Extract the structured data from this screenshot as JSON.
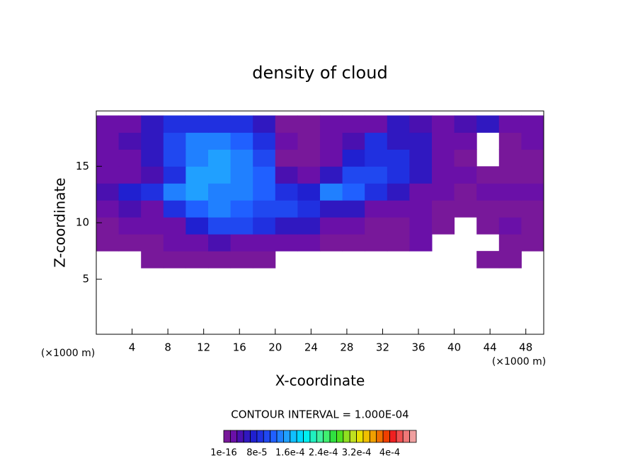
{
  "chart_data": {
    "type": "contourf",
    "title": "density of cloud",
    "x_label": "X-coordinate",
    "y_label": "Z-coordinate",
    "x_unit": "(×1000 m)",
    "y_unit": "(×1000 m)",
    "note": "CONTOUR INTERVAL = 1.000E-04",
    "xlim": [
      0,
      50
    ],
    "ylim": [
      0,
      19.9
    ],
    "xticks": [
      4,
      8,
      12,
      16,
      20,
      24,
      28,
      32,
      36,
      40,
      44,
      48
    ],
    "yticks": [
      5,
      10,
      15
    ],
    "x_edges": [
      0,
      2.5,
      5,
      7.5,
      10,
      12.5,
      15,
      17.5,
      20,
      22.5,
      25,
      27.5,
      30,
      32.5,
      35,
      37.5,
      40,
      42.5,
      45,
      47.5,
      50
    ],
    "z_edges": [
      6,
      7.5,
      9,
      10.5,
      12,
      13.5,
      15,
      16.5,
      18,
      19.5
    ],
    "values": [
      [
        null,
        null,
        1e-05,
        1e-05,
        1e-05,
        1e-05,
        1e-05,
        1e-05,
        null,
        null,
        null,
        null,
        null,
        null,
        null,
        null,
        null,
        1e-05,
        1e-05,
        null
      ],
      [
        1e-05,
        1e-05,
        1e-05,
        2e-05,
        3e-05,
        4e-05,
        3e-05,
        2e-05,
        2e-05,
        3e-05,
        1e-05,
        1e-05,
        1e-05,
        1e-05,
        2e-05,
        null,
        null,
        null,
        1e-05,
        1e-05
      ],
      [
        1e-05,
        2e-05,
        2e-05,
        3e-05,
        7e-05,
        0.0001,
        0.0001,
        8e-05,
        6e-05,
        5e-05,
        3e-05,
        2e-05,
        1e-05,
        1e-05,
        2e-05,
        1e-05,
        null,
        1e-05,
        2e-05,
        1e-05
      ],
      [
        3e-05,
        4e-05,
        3e-05,
        8e-05,
        0.00012,
        0.00013,
        0.00012,
        0.00011,
        0.0001,
        9e-05,
        6e-05,
        5e-05,
        3e-05,
        2e-05,
        2e-05,
        1e-05,
        1e-05,
        1e-05,
        1e-05,
        1e-05
      ],
      [
        4e-05,
        7e-05,
        8e-05,
        0.00013,
        0.00015,
        0.00014,
        0.00013,
        0.00012,
        9e-05,
        7e-05,
        0.00013,
        0.00012,
        9e-05,
        5e-05,
        3e-05,
        2e-05,
        1e-05,
        2e-05,
        3e-05,
        2e-05
      ],
      [
        2e-05,
        2e-05,
        4e-05,
        9e-05,
        0.00015,
        0.00015,
        0.00013,
        0.00012,
        4e-05,
        2e-05,
        6e-05,
        0.0001,
        0.00011,
        8e-05,
        5e-05,
        3e-05,
        2e-05,
        1e-05,
        1e-05,
        1e-05
      ],
      [
        2e-05,
        3e-05,
        5e-05,
        0.0001,
        0.00014,
        0.00015,
        0.00013,
        0.00011,
        1e-05,
        1e-05,
        2e-05,
        7e-05,
        9e-05,
        8e-05,
        5e-05,
        2e-05,
        1e-05,
        null,
        1e-05,
        1e-05
      ],
      [
        3e-05,
        4e-05,
        6e-05,
        0.00011,
        0.00013,
        0.00013,
        0.00012,
        9e-05,
        2e-05,
        1e-05,
        3e-05,
        4e-05,
        8e-05,
        6e-05,
        5e-05,
        3e-05,
        2e-05,
        null,
        1e-05,
        2e-05
      ],
      [
        3e-05,
        2e-05,
        6e-05,
        8e-05,
        9e-05,
        9e-05,
        8e-05,
        6e-05,
        1e-05,
        1e-05,
        2e-05,
        3e-05,
        3e-05,
        6e-05,
        4e-05,
        3e-05,
        4e-05,
        5e-05,
        3e-05,
        3e-05
      ]
    ],
    "clim": [
      0,
      0.000464
    ],
    "colors": [
      "#78189a",
      "#6a10a8",
      "#4a10b0",
      "#3018c0",
      "#2020d0",
      "#2030e0",
      "#2048f0",
      "#2060ff",
      "#2080ff",
      "#20a0ff",
      "#10c0ff",
      "#00d8ff",
      "#00f0f0",
      "#20f0c0",
      "#40f0a0",
      "#40f070",
      "#30e040",
      "#50e020",
      "#90e020",
      "#c0e020",
      "#e8e000",
      "#f0c000",
      "#f0a000",
      "#f07000",
      "#f04000",
      "#f02020",
      "#f05050",
      "#f07878",
      "#f0a0a0"
    ],
    "cticks": [
      {
        "value": 1e-16,
        "label": "1e-16"
      },
      {
        "value": 8e-05,
        "label": "8e-5"
      },
      {
        "value": 0.00016,
        "label": "1.6e-4"
      },
      {
        "value": 0.00024,
        "label": "2.4e-4"
      },
      {
        "value": 0.00032,
        "label": "3.2e-4"
      },
      {
        "value": 0.0004,
        "label": "4e-4"
      }
    ]
  }
}
